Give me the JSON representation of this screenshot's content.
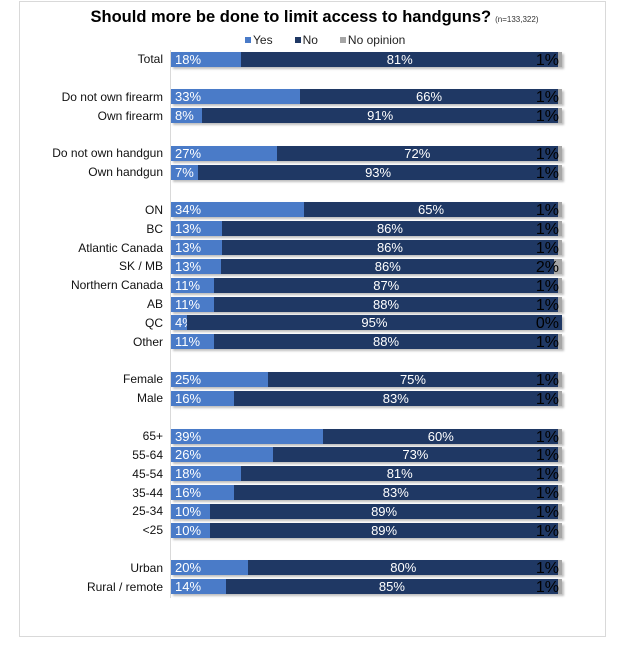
{
  "title": "Should more be done to limit access to handguns?",
  "sample_note": "(n=133,322)",
  "colors": {
    "yes": "#4a7bc8",
    "no": "#1f3864",
    "no_opinion": "#a6a6a6"
  },
  "chart_data": {
    "type": "bar",
    "orientation": "horizontal",
    "stacked": true,
    "title": "Should more be done to limit access to handguns?",
    "legend": [
      "Yes",
      "No",
      "No opinion"
    ],
    "legend_position": "top",
    "groups": [
      [
        {
          "label": "Total",
          "yes": 18,
          "no": 81,
          "no_opinion": 1
        }
      ],
      [
        {
          "label": "Do not own firearm",
          "yes": 33,
          "no": 66,
          "no_opinion": 1
        },
        {
          "label": "Own firearm",
          "yes": 8,
          "no": 91,
          "no_opinion": 1
        }
      ],
      [
        {
          "label": "Do not own handgun",
          "yes": 27,
          "no": 72,
          "no_opinion": 1
        },
        {
          "label": "Own handgun",
          "yes": 7,
          "no": 93,
          "no_opinion": 1
        }
      ],
      [
        {
          "label": "ON",
          "yes": 34,
          "no": 65,
          "no_opinion": 1
        },
        {
          "label": "BC",
          "yes": 13,
          "no": 86,
          "no_opinion": 1
        },
        {
          "label": "Atlantic Canada",
          "yes": 13,
          "no": 86,
          "no_opinion": 1
        },
        {
          "label": "SK / MB",
          "yes": 13,
          "no": 86,
          "no_opinion": 2
        },
        {
          "label": "Northern Canada",
          "yes": 11,
          "no": 87,
          "no_opinion": 1
        },
        {
          "label": "AB",
          "yes": 11,
          "no": 88,
          "no_opinion": 1
        },
        {
          "label": "QC",
          "yes": 4,
          "no": 95,
          "no_opinion": 0
        },
        {
          "label": "Other",
          "yes": 11,
          "no": 88,
          "no_opinion": 1
        }
      ],
      [
        {
          "label": "Female",
          "yes": 25,
          "no": 75,
          "no_opinion": 1
        },
        {
          "label": "Male",
          "yes": 16,
          "no": 83,
          "no_opinion": 1
        }
      ],
      [
        {
          "label": "65+",
          "yes": 39,
          "no": 60,
          "no_opinion": 1
        },
        {
          "label": "55-64",
          "yes": 26,
          "no": 73,
          "no_opinion": 1
        },
        {
          "label": "45-54",
          "yes": 18,
          "no": 81,
          "no_opinion": 1
        },
        {
          "label": "35-44",
          "yes": 16,
          "no": 83,
          "no_opinion": 1
        },
        {
          "label": "25-34",
          "yes": 10,
          "no": 89,
          "no_opinion": 1
        },
        {
          "label": "<25",
          "yes": 10,
          "no": 89,
          "no_opinion": 1
        }
      ],
      [
        {
          "label": "Urban",
          "yes": 20,
          "no": 80,
          "no_opinion": 1
        },
        {
          "label": "Rural / remote",
          "yes": 14,
          "no": 85,
          "no_opinion": 1
        }
      ]
    ],
    "unit": "%"
  }
}
